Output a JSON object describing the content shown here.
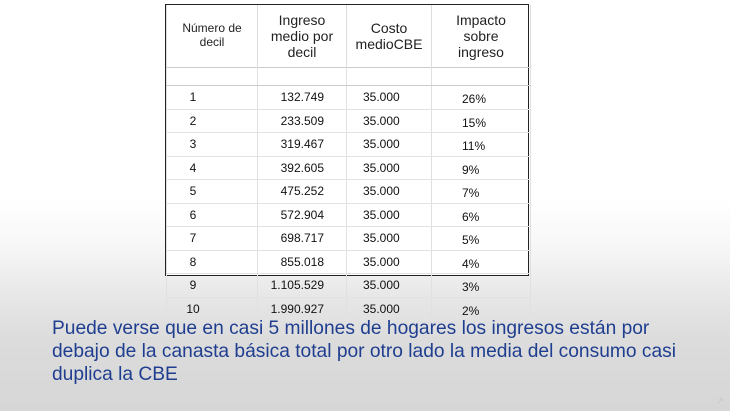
{
  "table": {
    "headers": [
      "Número de\ndecil",
      "Ingreso\nmedio por\ndecil",
      "Costo\nmedioCBE",
      "Impacto\nsobre\ningreso"
    ],
    "rows": [
      {
        "decil": "1",
        "ingreso": "132.749",
        "costo": "35.000",
        "impacto": "26%"
      },
      {
        "decil": "2",
        "ingreso": "233.509",
        "costo": "35.000",
        "impacto": "15%"
      },
      {
        "decil": "3",
        "ingreso": "319.467",
        "costo": "35.000",
        "impacto": "11%"
      },
      {
        "decil": "4",
        "ingreso": "392.605",
        "costo": "35.000",
        "impacto": "9%"
      },
      {
        "decil": "5",
        "ingreso": "475.252",
        "costo": "35.000",
        "impacto": "7%"
      },
      {
        "decil": "6",
        "ingreso": "572.904",
        "costo": "35.000",
        "impacto": "6%"
      },
      {
        "decil": "7",
        "ingreso": "698.717",
        "costo": "35.000",
        "impacto": "5%"
      },
      {
        "decil": "8",
        "ingreso": "855.018",
        "costo": "35.000",
        "impacto": "4%"
      },
      {
        "decil": "9",
        "ingreso": "1.105.529",
        "costo": "35.000",
        "impacto": "3%"
      },
      {
        "decil": "10",
        "ingreso": "1.990.927",
        "costo": "35.000",
        "impacto": "2%"
      }
    ]
  },
  "caption": "Puede verse que en casi 5 millones de hogares los ingresos están por debajo de la canasta básica total por otro lado la media del consumo casi duplica la CBE",
  "colors": {
    "caption_text": "#1f3e8f",
    "table_border": "#222222"
  },
  "icons": {
    "corner": "expand-corner-icon"
  }
}
